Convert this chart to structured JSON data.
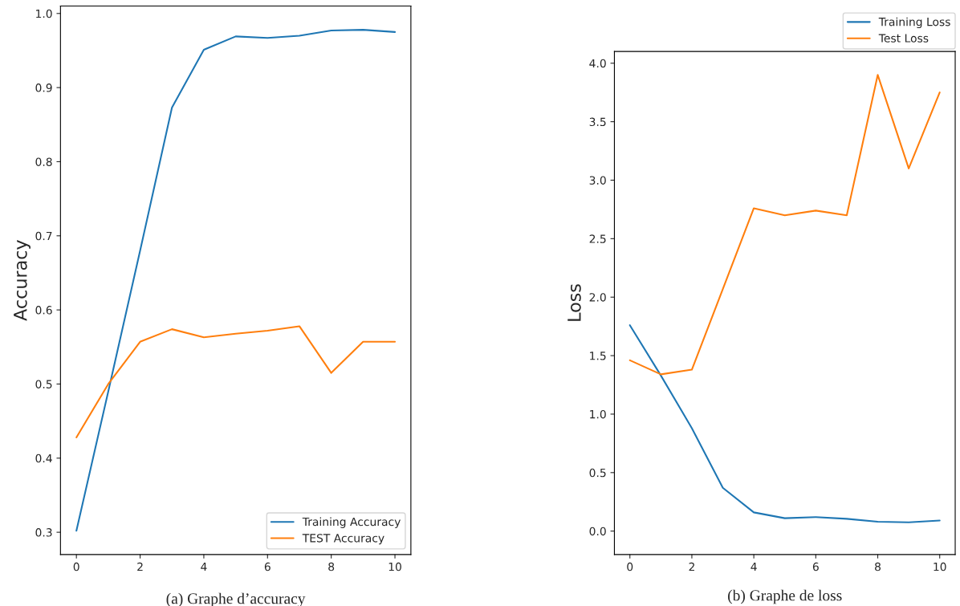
{
  "chart_data": [
    {
      "type": "line",
      "ylabel": "Accuracy",
      "x": [
        0,
        1,
        2,
        3,
        4,
        5,
        6,
        7,
        8,
        9,
        10
      ],
      "xlim": [
        -0.5,
        10.5
      ],
      "xticks": [
        0,
        2,
        4,
        6,
        8,
        10
      ],
      "ylim": [
        0.27,
        1.01
      ],
      "yticks": [
        0.3,
        0.4,
        0.5,
        0.6,
        0.7,
        0.8,
        0.9,
        {
          "value": 1,
          "label": "1.0"
        }
      ],
      "grid": false,
      "legend": "bottom right",
      "annotations": [
        "(a) Graphe d’accuracy"
      ],
      "series": [
        {
          "name": "Training Accuracy",
          "color": "#1f77b4",
          "values": [
            0.302,
            0.49,
            0.68,
            0.873,
            0.951,
            0.969,
            0.967,
            0.97,
            0.977,
            0.978,
            0.975
          ]
        },
        {
          "name": "TEST Accuracy",
          "color": "#ff7f0e",
          "values": [
            0.428,
            0.5,
            0.557,
            0.574,
            0.563,
            0.568,
            0.572,
            0.578,
            0.515,
            0.557,
            0.557
          ]
        }
      ]
    },
    {
      "type": "line",
      "ylabel": "Loss",
      "x": [
        0,
        1,
        2,
        3,
        4,
        5,
        6,
        7,
        8,
        9,
        10
      ],
      "xlim": [
        -0.5,
        10.5
      ],
      "xticks": [
        0,
        2,
        4,
        6,
        8,
        10
      ],
      "ylim": [
        -0.2,
        4.1
      ],
      "yticks": [
        {
          "value": 0,
          "label": "0.0"
        },
        0.5,
        {
          "value": 1,
          "label": "1.0"
        },
        1.5,
        {
          "value": 2,
          "label": "2.0"
        },
        2.5,
        {
          "value": 3,
          "label": "3.0"
        },
        3.5,
        {
          "value": 4,
          "label": "4.0"
        }
      ],
      "grid": false,
      "legend": "top right",
      "annotations": [
        "(b) Graphe de loss"
      ],
      "series": [
        {
          "name": "Training Loss",
          "color": "#1f77b4",
          "values": [
            1.76,
            1.33,
            0.88,
            0.37,
            0.16,
            0.11,
            0.12,
            0.105,
            0.08,
            0.075,
            0.09
          ]
        },
        {
          "name": "Test Loss",
          "color": "#ff7f0e",
          "values": [
            1.46,
            1.34,
            1.38,
            2.07,
            2.76,
            2.7,
            2.74,
            2.7,
            3.9,
            3.1,
            3.75
          ]
        }
      ]
    }
  ]
}
